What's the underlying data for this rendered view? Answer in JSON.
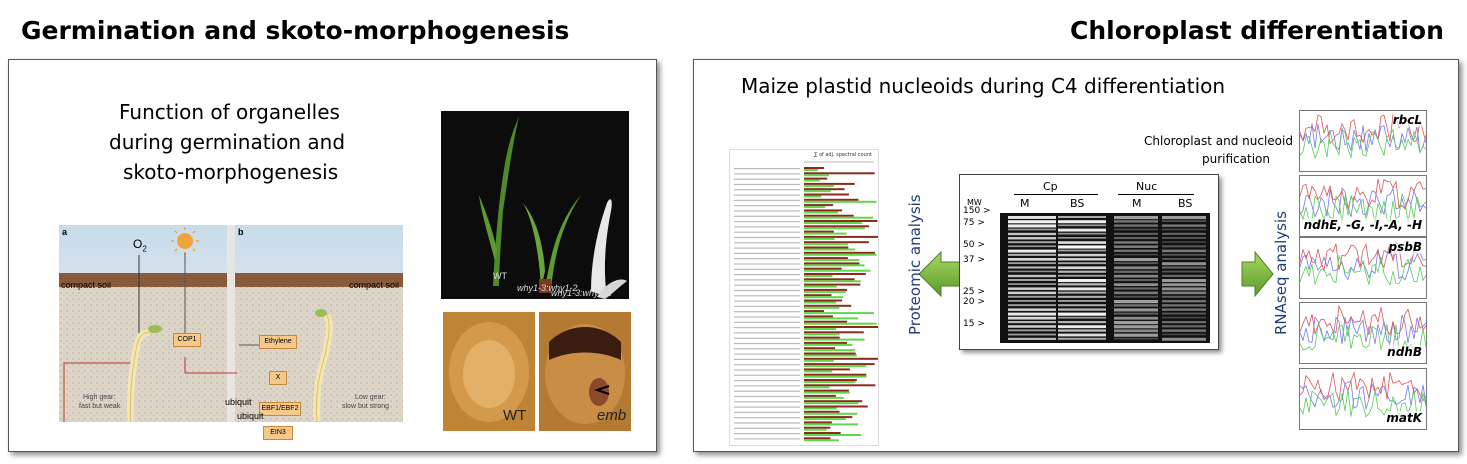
{
  "left_heading": "Germination and skoto-morphogenesis",
  "right_heading": "Chloroplast differentiation",
  "left_panel": {
    "title_lines": [
      "Function of organelles",
      "during germination and",
      "skoto-morphogenesis"
    ],
    "diagram": {
      "panel_a": "a",
      "panel_b": "b",
      "o2_label": "O",
      "o2_sub": "2",
      "soil_a": "compact soil",
      "soil_b": "compact soil",
      "cop1": "COP1",
      "ethylene": "Ethylene",
      "x_box": "X",
      "ebf": "EBF1/EBF2",
      "ein3": "EIN3",
      "ubiquit_1": "ubiquit",
      "ubiquit_2": "ubiquit",
      "gear_a_1": "High gear:",
      "gear_a_2": "fast but weak",
      "gear_b_1": "Low gear:",
      "gear_b_2": "slow but strong"
    },
    "plants_photo": {
      "wt": "WT",
      "mut1": "why1-3:why1-2",
      "mut2": "why1-3:why1-1"
    },
    "kernel_photos": {
      "wt": "WT",
      "emb": "emb"
    }
  },
  "right_panel": {
    "title": "Maize plastid nucleoids during C4 differentiation",
    "purification_lines": [
      "Chloroplast and nucleoid",
      "purification"
    ],
    "proteomic_label": "Proteomic analysis",
    "rnaseq_label": "RNAseq analysis",
    "bar_chart_header": "∑ of adj. spectral count",
    "gel": {
      "mw": "MW",
      "cp": "Cp",
      "nuc": "Nuc",
      "lanes": [
        "M",
        "BS",
        "M",
        "BS"
      ],
      "markers": [
        "150",
        "75",
        "50",
        "37",
        "25",
        "20",
        "15"
      ]
    },
    "traces": [
      "rbcL",
      "ndhE, -G, -I,-A, -H",
      "psbB",
      "ndhB",
      "matK"
    ]
  }
}
